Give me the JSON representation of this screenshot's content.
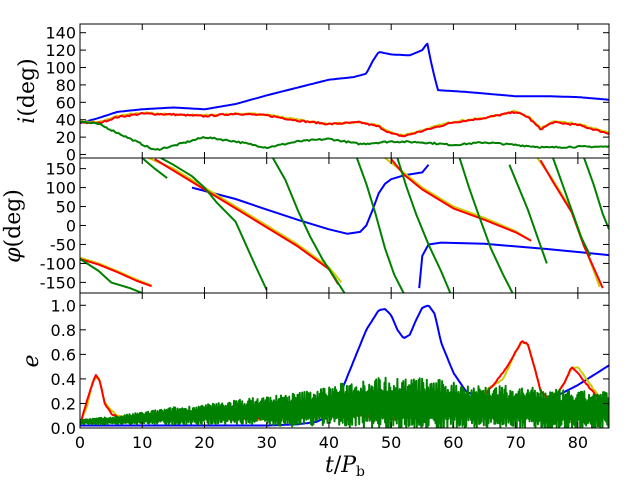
{
  "chart_data": [
    {
      "type": "line",
      "panel": "top",
      "ylabel": "i(deg)",
      "ylabel_parts": {
        "sym": "i",
        "rest": "(deg)"
      },
      "xlim": [
        0,
        85
      ],
      "ylim": [
        -4,
        150
      ],
      "yticks": [
        0,
        20,
        40,
        60,
        80,
        100,
        120,
        140
      ],
      "grid": false,
      "series": [
        {
          "color": "#0000ff",
          "x": [
            0,
            3,
            6,
            10,
            15,
            20,
            25,
            30,
            35,
            40,
            44,
            46,
            47,
            48,
            50,
            53,
            55,
            55.8,
            56.5,
            57.5,
            62,
            70,
            75,
            80,
            85
          ],
          "values": [
            36,
            42,
            49,
            52,
            54,
            52,
            58,
            68,
            77,
            86,
            89,
            93,
            107,
            118,
            115,
            114,
            120,
            128,
            103,
            74,
            72,
            67,
            67,
            66,
            63
          ]
        },
        {
          "color": "#cccc00",
          "x": [
            0,
            3,
            6,
            10,
            15,
            20,
            25,
            30,
            35,
            40,
            45,
            48,
            50,
            52,
            55,
            60,
            65,
            70,
            72,
            74,
            76,
            80,
            85
          ],
          "values": [
            38,
            37,
            44,
            48,
            46,
            45,
            47,
            46,
            40,
            35,
            37,
            33,
            25,
            22,
            28,
            38,
            42,
            50,
            44,
            30,
            38,
            35,
            25
          ]
        },
        {
          "color": "#ff0000",
          "x": [
            0,
            3,
            6,
            10,
            15,
            20,
            25,
            30,
            35,
            40,
            45,
            48,
            50,
            52,
            55,
            60,
            65,
            70,
            72,
            74,
            76,
            80,
            85
          ],
          "values": [
            37,
            36,
            43,
            47,
            46,
            44,
            47,
            45,
            39,
            35,
            37,
            32,
            24,
            21,
            27,
            37,
            42,
            49,
            43,
            29,
            37,
            34,
            24
          ]
        },
        {
          "color": "#008000",
          "x": [
            0,
            3,
            6,
            9,
            12,
            15,
            20,
            25,
            30,
            35,
            40,
            45,
            50,
            55,
            60,
            65,
            70,
            75,
            80,
            85
          ],
          "values": [
            38,
            35,
            25,
            15,
            5,
            10,
            20,
            15,
            8,
            15,
            18,
            12,
            15,
            14,
            11,
            14,
            11,
            8,
            9,
            9
          ]
        }
      ]
    },
    {
      "type": "scatter",
      "panel": "middle",
      "ylabel": "φ(deg)",
      "ylabel_parts": {
        "sym": "φ",
        "rest": "(deg)"
      },
      "xlim": [
        0,
        85
      ],
      "ylim": [
        -178,
        178
      ],
      "yticks": [
        -150,
        -100,
        -50,
        0,
        50,
        100,
        150
      ],
      "grid": false,
      "series": [
        {
          "color": "#0000ff",
          "segments": [
            {
              "x": [
                18,
                25,
                30,
                35,
                40,
                43,
                45,
                46,
                47,
                48,
                49,
                50,
                52,
                55,
                56
              ],
              "values": [
                100,
                70,
                42,
                15,
                -10,
                -22,
                -17,
                0,
                40,
                85,
                110,
                122,
                132,
                140,
                160
              ]
            },
            {
              "x": [
                54.5,
                55,
                56,
                58,
                65,
                70,
                75,
                80,
                85
              ],
              "values": [
                -165,
                -80,
                -50,
                -45,
                -48,
                -55,
                -62,
                -70,
                -78
              ]
            }
          ]
        },
        {
          "color": "#cccc00",
          "segments": [
            {
              "x": [
                0,
                3,
                6,
                9,
                11.5
              ],
              "values": [
                -85,
                -100,
                -120,
                -142,
                -158
              ]
            },
            {
              "x": [
                11,
                15,
                20,
                25,
                30,
                35,
                40,
                42
              ],
              "values": [
                178,
                150,
                100,
                50,
                0,
                -50,
                -110,
                -150
              ]
            },
            {
              "x": [
                49,
                52,
                55,
                60,
                65,
                70,
                72
              ],
              "values": [
                178,
                140,
                100,
                50,
                20,
                -15,
                -35
              ]
            },
            {
              "x": [
                73.5,
                76,
                79,
                81,
                83.5
              ],
              "values": [
                178,
                120,
                40,
                -50,
                -162
              ]
            }
          ]
        },
        {
          "color": "#ff0000",
          "segments": [
            {
              "x": [
                0,
                3,
                6,
                9,
                11.5
              ],
              "values": [
                -88,
                -103,
                -123,
                -145,
                -160
              ]
            },
            {
              "x": [
                12,
                15,
                20,
                25,
                30,
                35,
                40,
                41.5
              ],
              "values": [
                175,
                145,
                95,
                45,
                -5,
                -55,
                -115,
                -155
              ]
            },
            {
              "x": [
                50,
                52,
                55,
                60,
                65,
                70,
                72.5
              ],
              "values": [
                175,
                135,
                95,
                45,
                15,
                -18,
                -40
              ]
            },
            {
              "x": [
                74,
                76,
                79,
                81,
                84
              ],
              "values": [
                172,
                115,
                35,
                -55,
                -165
              ]
            }
          ]
        },
        {
          "color": "#008000",
          "segments": [
            {
              "x": [
                0,
                3,
                5,
                8,
                10
              ],
              "values": [
                -88,
                -120,
                -150,
                -165,
                -178
              ]
            },
            {
              "x": [
                10,
                12,
                14
              ],
              "values": [
                178,
                150,
                125
              ]
            },
            {
              "x": [
                13,
                15,
                18,
                20,
                22,
                25,
                28,
                30
              ],
              "values": [
                178,
                160,
                130,
                100,
                60,
                10,
                -100,
                -170
              ]
            },
            {
              "x": [
                31,
                33,
                35,
                37,
                39,
                41,
                42.5
              ],
              "values": [
                178,
                120,
                40,
                -30,
                -90,
                -140,
                -178
              ]
            },
            {
              "x": [
                44.5,
                46,
                47.5,
                49,
                50.5,
                52
              ],
              "values": [
                178,
                110,
                30,
                -60,
                -130,
                -178
              ]
            },
            {
              "x": [
                51,
                52.5,
                54,
                56,
                58,
                59.5
              ],
              "values": [
                178,
                100,
                30,
                -50,
                -120,
                -178
              ]
            },
            {
              "x": [
                61,
                62.5,
                64,
                66,
                68,
                69.5
              ],
              "values": [
                178,
                100,
                30,
                -60,
                -130,
                -178
              ]
            },
            {
              "x": [
                69,
                70.5,
                72,
                73.5,
                75
              ],
              "values": [
                160,
                100,
                40,
                -30,
                -100
              ]
            },
            {
              "x": [
                76,
                77.5,
                79,
                80.5,
                82
              ],
              "values": [
                178,
                110,
                40,
                -30,
                -80
              ]
            },
            {
              "x": [
                81,
                82.5,
                84,
                85
              ],
              "values": [
                178,
                110,
                30,
                -10
              ]
            }
          ]
        }
      ]
    },
    {
      "type": "line",
      "panel": "bottom",
      "ylabel": "e",
      "xlabel": "t/Pb",
      "xlabel_parts": {
        "sym": "t",
        "slash": "/",
        "P": "P",
        "sub": "b"
      },
      "xlim": [
        0,
        85
      ],
      "ylim": [
        0,
        1.1
      ],
      "yticks": [
        0.0,
        0.2,
        0.4,
        0.6,
        0.8,
        1.0
      ],
      "ytick_labels": [
        "0.0",
        "0.2",
        "0.4",
        "0.6",
        "0.8",
        "1.0"
      ],
      "xticks": [
        0,
        10,
        20,
        30,
        40,
        50,
        60,
        70,
        80
      ],
      "grid": false,
      "series": [
        {
          "color": "#0000ff",
          "x": [
            0,
            10,
            20,
            30,
            35,
            38,
            40,
            42,
            44,
            46,
            48,
            49,
            50,
            51,
            52,
            53,
            54,
            55,
            56,
            57,
            58,
            60,
            62,
            65,
            70,
            75,
            80,
            85
          ],
          "values": [
            0.02,
            0.02,
            0.02,
            0.02,
            0.03,
            0.05,
            0.1,
            0.3,
            0.55,
            0.8,
            0.96,
            0.97,
            0.92,
            0.8,
            0.73,
            0.76,
            0.88,
            0.98,
            1.0,
            0.93,
            0.7,
            0.45,
            0.3,
            0.22,
            0.17,
            0.22,
            0.35,
            0.51
          ]
        },
        {
          "color": "#cccc00",
          "x": [
            0,
            1,
            2,
            3,
            4,
            6,
            10,
            20,
            30,
            40,
            45,
            50,
            55,
            60,
            63,
            65,
            68,
            70,
            71,
            72,
            73,
            74,
            75,
            77,
            79,
            80,
            82,
            85
          ],
          "values": [
            0.05,
            0.15,
            0.38,
            0.42,
            0.2,
            0.1,
            0.08,
            0.07,
            0.07,
            0.1,
            0.12,
            0.07,
            0.1,
            0.1,
            0.2,
            0.3,
            0.4,
            0.62,
            0.7,
            0.68,
            0.5,
            0.3,
            0.25,
            0.3,
            0.48,
            0.5,
            0.35,
            0.15
          ]
        },
        {
          "color": "#ff0000",
          "x": [
            0,
            1,
            2,
            2.5,
            3,
            4,
            5,
            6,
            10,
            15,
            20,
            25,
            30,
            35,
            40,
            45,
            50,
            55,
            60,
            62,
            64,
            66,
            68,
            70,
            71,
            72,
            73,
            74,
            76,
            78,
            79,
            80,
            82,
            85
          ],
          "values": [
            0.03,
            0.2,
            0.36,
            0.43,
            0.41,
            0.2,
            0.12,
            0.09,
            0.07,
            0.08,
            0.09,
            0.08,
            0.08,
            0.1,
            0.11,
            0.1,
            0.08,
            0.1,
            0.1,
            0.15,
            0.22,
            0.33,
            0.45,
            0.62,
            0.71,
            0.68,
            0.5,
            0.3,
            0.22,
            0.38,
            0.5,
            0.45,
            0.32,
            0.15
          ]
        },
        {
          "color": "#008000",
          "noisy": true,
          "x": [
            0,
            5,
            10,
            15,
            20,
            25,
            30,
            35,
            40,
            45,
            50,
            55,
            60,
            65,
            70,
            75,
            80,
            85
          ],
          "values": [
            0.05,
            0.06,
            0.08,
            0.1,
            0.11,
            0.13,
            0.14,
            0.15,
            0.18,
            0.2,
            0.2,
            0.19,
            0.18,
            0.17,
            0.16,
            0.15,
            0.14,
            0.15
          ],
          "amplitude": [
            0.02,
            0.03,
            0.05,
            0.07,
            0.08,
            0.1,
            0.12,
            0.14,
            0.16,
            0.2,
            0.22,
            0.22,
            0.2,
            0.18,
            0.18,
            0.17,
            0.16,
            0.15
          ]
        }
      ]
    }
  ],
  "colors": {
    "blue": "#0000ff",
    "yellow": "#cccc00",
    "red": "#ff0000",
    "green": "#008000"
  }
}
